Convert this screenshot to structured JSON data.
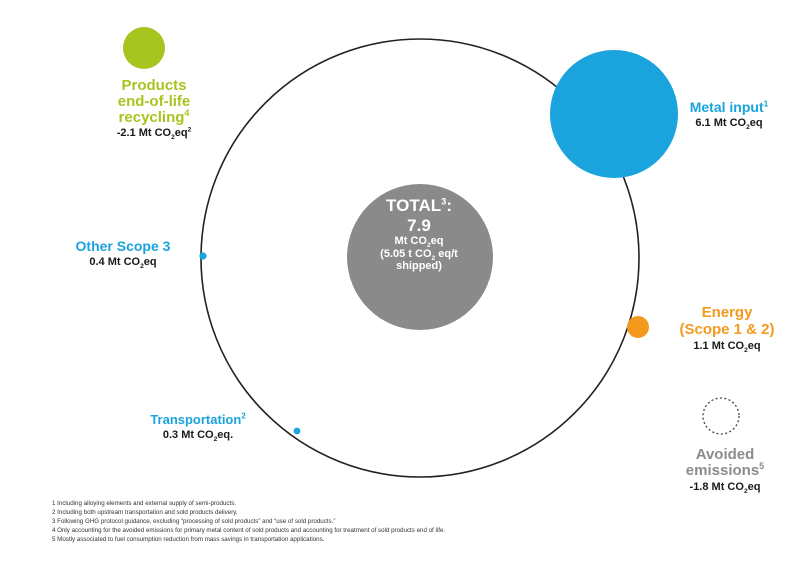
{
  "colors": {
    "metal": "#1aa3dc",
    "recycling": "#a7c520",
    "energy": "#f39a1e",
    "center": "#8a8a8a",
    "ring": "#222222",
    "avoided": "#8c8c8c"
  },
  "nodes": {
    "recycling": {
      "line1": "Products",
      "line2": "end-of-life",
      "line3": "recycling",
      "sup": "4",
      "value": "-2.1 Mt CO",
      "value_sub": "2",
      "value_end": "eq",
      "value_sup": "2"
    },
    "metal": {
      "name": "Metal input",
      "sup": "1",
      "value": "6.1 Mt CO",
      "value_sub": "2",
      "value_end": "eq"
    },
    "other": {
      "name": "Other Scope 3",
      "value": "0.4 Mt CO",
      "value_sub": "2",
      "value_end": "eq"
    },
    "energy": {
      "line1": "Energy",
      "line2": "(Scope 1 & 2)",
      "value": "1.1 Mt CO",
      "value_sub": "2",
      "value_end": "eq"
    },
    "transport": {
      "name": "Transportation",
      "sup": "2",
      "value": "0.3 Mt CO",
      "value_sub": "2",
      "value_end": "eq."
    },
    "avoided": {
      "line1": "Avoided",
      "line2": "emissions",
      "sup": "5",
      "value": "-1.8 Mt CO",
      "value_sub": "2",
      "value_end": "eq"
    }
  },
  "total": {
    "title": "TOTAL",
    "title_sup": "3",
    "title_end": ":",
    "value": "7.9",
    "unit": "Mt CO",
    "unit_sub": "2",
    "unit_end": "eq",
    "sub1_start": "(5.05 t CO",
    "sub1_sub": "2",
    "sub1_end": " eq/t",
    "sub2": "shipped)"
  },
  "footnotes": [
    "1 Including alloying elements and external supply of semi-products.",
    "2 Including both upstream transportation and sold products delivery.",
    "3 Following GHG protocol guidance, excluding “processing of sold products” and “use of sold products.”",
    "4 Only accounting for the avoided emissions for primary metal content of sold products and accounting for treatment of sold products end of life.",
    "5 Mostly associated to fuel consumption reduction from mass savings in transportation applications."
  ]
}
